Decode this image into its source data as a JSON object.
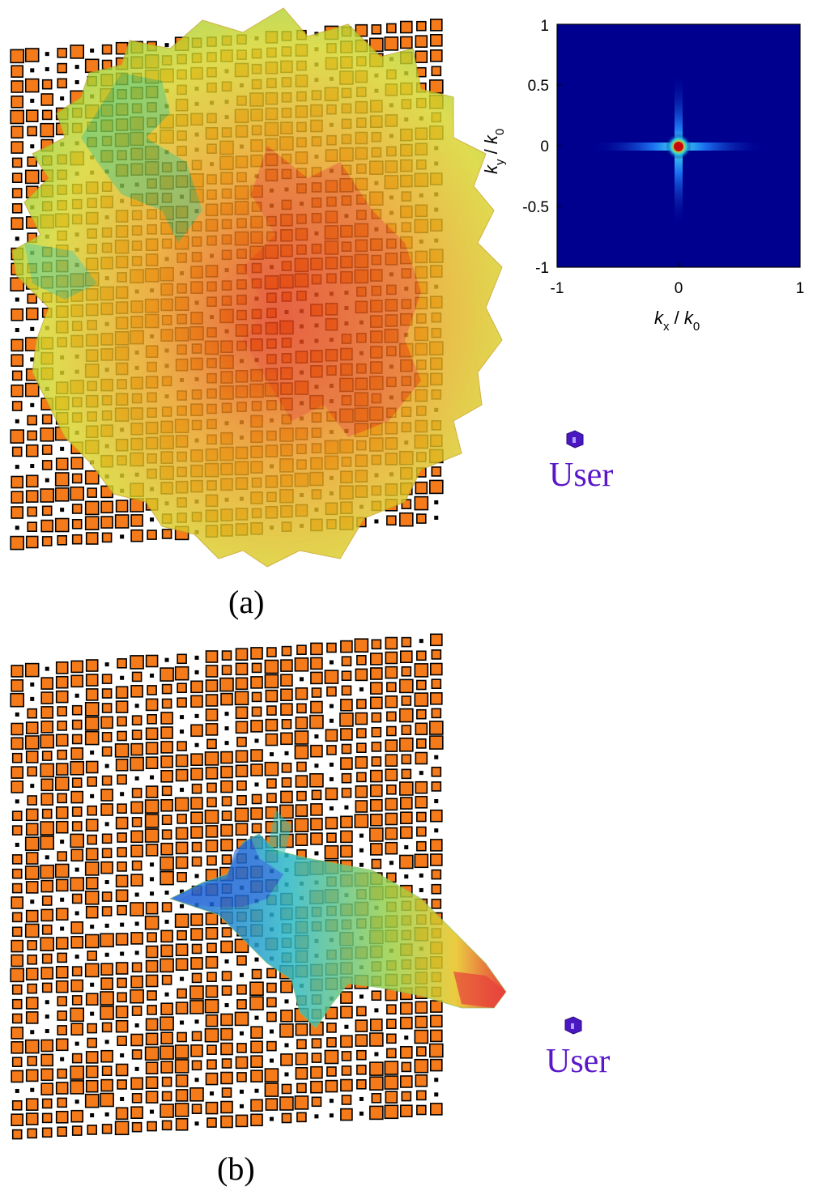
{
  "panel_a": {
    "caption": "(a)",
    "user_label": "User",
    "inset": {
      "x_label": "k",
      "x_sub": "x",
      "x_den": "k",
      "x_den_sub": "0",
      "y_label": "k",
      "y_sub": "y",
      "y_den": "k",
      "y_den_sub": "0",
      "x_ticks": [
        "-1",
        "0",
        "1"
      ],
      "y_ticks": [
        "1",
        "0.5",
        "0",
        "-0.5",
        "-1"
      ]
    }
  },
  "panel_b": {
    "caption": "(b)",
    "user_label": "User"
  },
  "colors": {
    "user": "#5a18c8",
    "tile": "#f47a1a",
    "spectrum_bg": "#00008f",
    "beam_hot": "#e8201a",
    "beam_warm": "#e8d020",
    "beam_cool": "#1e8ad8"
  }
}
